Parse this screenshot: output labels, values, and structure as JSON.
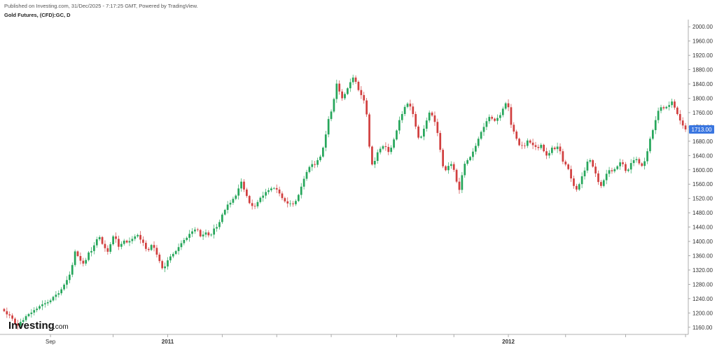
{
  "header": {
    "published": "Published on Investing.com, 31/Dec/2025 - 7:17:25 GMT, Powered by TradingView.",
    "title": "Gold Futures, (CFD):GC, D"
  },
  "logo": {
    "word": "Investing",
    "suffix": ".com"
  },
  "price_badge": {
    "value": "1713.00",
    "color": "#3a76e0"
  },
  "colors": {
    "up": "#26a65b",
    "down": "#d13f3f",
    "axis": "#999999",
    "badge": "#3a76e0"
  },
  "chart_data": {
    "type": "candlestick",
    "title": "Gold Futures, (CFD):GC, D",
    "ylim": [
      1140,
      2020
    ],
    "y_ticks": [
      "1160.00",
      "1200.00",
      "1240.00",
      "1280.00",
      "1320.00",
      "1360.00",
      "1400.00",
      "1440.00",
      "1480.00",
      "1520.00",
      "1560.00",
      "1600.00",
      "1640.00",
      "1680.00",
      "1720.00",
      "1760.00",
      "1800.00",
      "1840.00",
      "1880.00",
      "1920.00",
      "1960.00",
      "2000.00"
    ],
    "x_labels": [
      {
        "label": "Sep",
        "index": 17
      },
      {
        "label": "2011",
        "index": 60
      },
      {
        "label": "2012",
        "index": 185
      }
    ],
    "x_minor_tick_indices": [
      40,
      80,
      100,
      120,
      144,
      165,
      206,
      228,
      250,
      268
    ],
    "closes": [
      1205,
      1196,
      1193,
      1184,
      1170,
      1165,
      1175,
      1180,
      1191,
      1197,
      1201,
      1208,
      1212,
      1219,
      1224,
      1227,
      1230,
      1235,
      1245,
      1251,
      1255,
      1266,
      1279,
      1292,
      1307,
      1334,
      1372,
      1359,
      1346,
      1338,
      1348,
      1369,
      1373,
      1389,
      1406,
      1412,
      1393,
      1381,
      1371,
      1392,
      1414,
      1407,
      1385,
      1393,
      1402,
      1397,
      1401,
      1407,
      1414,
      1418,
      1405,
      1396,
      1379,
      1376,
      1390,
      1382,
      1363,
      1345,
      1325,
      1330,
      1347,
      1358,
      1365,
      1373,
      1384,
      1395,
      1404,
      1410,
      1421,
      1428,
      1433,
      1432,
      1414,
      1419,
      1425,
      1417,
      1419,
      1436,
      1440,
      1454,
      1475,
      1488,
      1503,
      1508,
      1519,
      1528,
      1548,
      1567,
      1545,
      1527,
      1507,
      1499,
      1498,
      1510,
      1522,
      1528,
      1538,
      1543,
      1548,
      1549,
      1545,
      1534,
      1521,
      1512,
      1506,
      1506,
      1504,
      1513,
      1530,
      1553,
      1575,
      1594,
      1608,
      1616,
      1614,
      1627,
      1637,
      1662,
      1699,
      1742,
      1763,
      1798,
      1841,
      1819,
      1800,
      1812,
      1828,
      1845,
      1858,
      1846,
      1823,
      1809,
      1794,
      1755,
      1665,
      1615,
      1625,
      1649,
      1659,
      1666,
      1664,
      1650,
      1662,
      1685,
      1710,
      1739,
      1756,
      1776,
      1785,
      1777,
      1756,
      1721,
      1690,
      1693,
      1715,
      1738,
      1760,
      1752,
      1734,
      1703,
      1656,
      1610,
      1599,
      1611,
      1616,
      1600,
      1567,
      1544,
      1585,
      1617,
      1627,
      1636,
      1651,
      1667,
      1687,
      1706,
      1720,
      1736,
      1748,
      1743,
      1737,
      1745,
      1753,
      1771,
      1786,
      1775,
      1726,
      1707,
      1687,
      1669,
      1668,
      1667,
      1682,
      1676,
      1669,
      1664,
      1661,
      1670,
      1652,
      1640,
      1647,
      1662,
      1658,
      1665,
      1652,
      1623,
      1615,
      1602,
      1576,
      1555,
      1545,
      1560,
      1582,
      1598,
      1623,
      1627,
      1609,
      1590,
      1566,
      1555,
      1571,
      1589,
      1599,
      1596,
      1602,
      1610,
      1621,
      1616,
      1597,
      1601,
      1619,
      1627,
      1630,
      1618,
      1611,
      1624,
      1652,
      1687,
      1711,
      1739,
      1765,
      1775,
      1772,
      1776,
      1781,
      1791,
      1774,
      1756,
      1738,
      1724,
      1713
    ]
  }
}
